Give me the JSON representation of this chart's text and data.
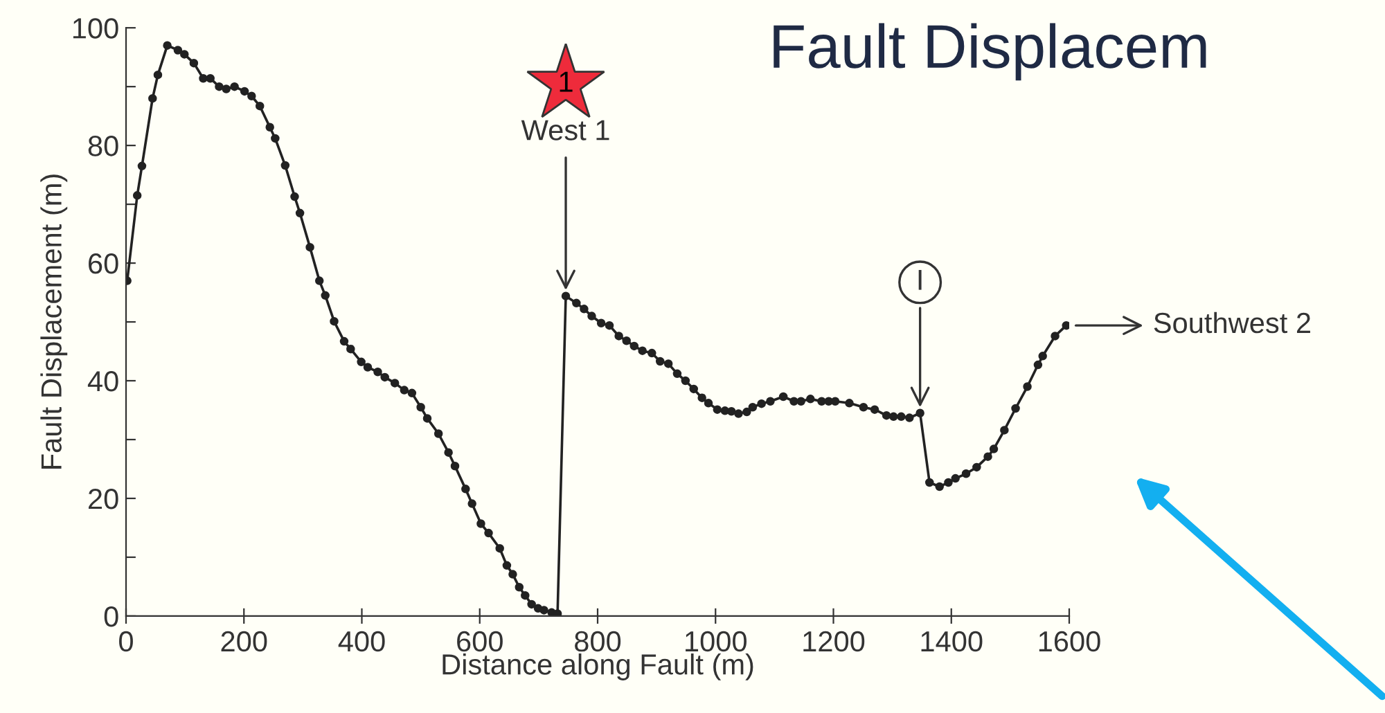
{
  "chart_data": {
    "type": "line",
    "title": "Fault Displacem",
    "xlabel": "Distance along Fault (m)",
    "ylabel": "Fault Displacement (m)",
    "x": [
      2,
      19,
      27,
      45,
      54,
      70,
      88,
      99,
      115,
      131,
      143,
      158,
      170,
      184,
      201,
      213,
      227,
      244,
      253,
      270,
      286,
      295,
      312,
      328,
      338,
      353,
      370,
      381,
      399,
      410,
      427,
      439,
      456,
      472,
      485,
      500,
      511,
      530,
      547,
      558,
      576,
      587,
      602,
      615,
      634,
      646,
      656,
      667,
      677,
      688,
      699,
      709,
      722,
      732,
      746,
      764,
      777,
      790,
      806,
      820,
      836,
      849,
      862,
      876,
      892,
      906,
      920,
      935,
      949,
      963,
      977,
      988,
      1003,
      1016,
      1027,
      1039,
      1053,
      1063,
      1078,
      1093,
      1115,
      1133,
      1145,
      1161,
      1180,
      1192,
      1203,
      1227,
      1251,
      1270,
      1290,
      1302,
      1315,
      1329,
      1347,
      1363,
      1380,
      1395,
      1407,
      1425,
      1443,
      1462,
      1472,
      1490,
      1509,
      1529,
      1547,
      1555,
      1576,
      1595
    ],
    "series": [
      {
        "color": "#222222",
        "values": [
          57,
          71.5,
          76.5,
          88,
          92,
          97,
          96.2,
          95.5,
          94,
          91.4,
          91.4,
          90,
          89.6,
          90,
          89.2,
          88.4,
          86.7,
          83.1,
          81.2,
          76.6,
          71.3,
          68.5,
          62.7,
          57,
          54.5,
          50.1,
          46.7,
          45.4,
          43.2,
          42.3,
          41.5,
          40.6,
          39.6,
          38.4,
          37.9,
          35.5,
          33.6,
          31,
          27.8,
          25.5,
          21.6,
          19.1,
          15.7,
          14.1,
          11.5,
          8.6,
          7.1,
          4.9,
          3.5,
          2,
          1.3,
          1,
          0.6,
          0.4,
          54.4,
          53.2,
          52.2,
          51,
          49.8,
          49.4,
          47.6,
          46.8,
          45.9,
          45.1,
          44.7,
          43.3,
          42.9,
          41.2,
          40,
          38.6,
          37.1,
          36.2,
          35.1,
          34.9,
          34.8,
          34.4,
          34.7,
          35.5,
          36.1,
          36.5,
          37.3,
          36.5,
          36.5,
          36.9,
          36.5,
          36.5,
          36.5,
          36.2,
          35.5,
          35.1,
          34.1,
          33.9,
          33.9,
          33.7,
          34.5,
          22.7,
          22,
          22.7,
          23.4,
          24.2,
          25.3,
          27.1,
          28.4,
          31.6,
          35.3,
          39,
          42.7,
          44.2,
          47.6,
          49.4
        ]
      }
    ],
    "xlim": [
      0,
      1600
    ],
    "xticks": [
      0,
      200,
      400,
      600,
      800,
      1000,
      1200,
      1400,
      1600
    ],
    "ylim": [
      0,
      100
    ],
    "yticks": [
      0,
      {
        "value": 10,
        "label": null
      },
      20,
      {
        "value": 30,
        "label": null
      },
      40,
      {
        "value": 50,
        "label": null
      },
      60,
      {
        "value": 70,
        "label": null
      },
      80,
      {
        "value": 90,
        "label": null
      },
      100
    ],
    "marker": "circle",
    "line_style": "solid",
    "grid": false,
    "legend": false,
    "annotations": [
      "1",
      {
        "text": "West 1",
        "x": 746,
        "y": 54.4
      },
      {
        "text": "I",
        "x": 1347,
        "y": 34.5
      },
      {
        "text": "Southwest 2",
        "x": 1595,
        "y": 49.4
      }
    ]
  }
}
